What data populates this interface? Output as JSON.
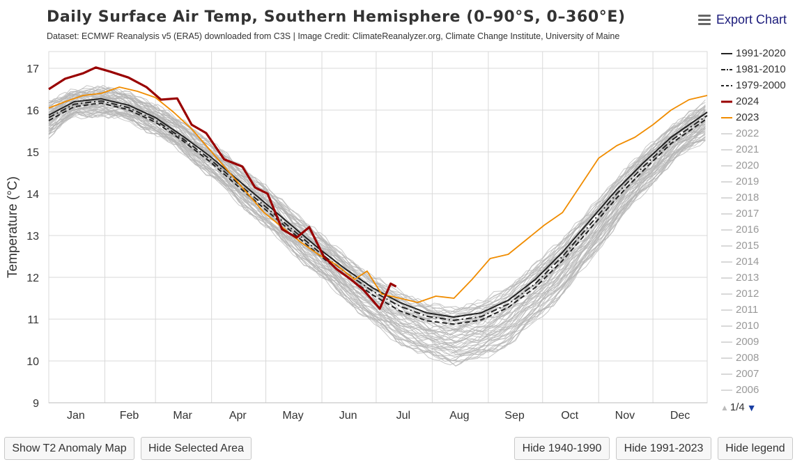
{
  "header": {
    "title": "Daily Surface Air Temp, Southern Hemisphere (0–90°S, 0–360°E)",
    "subtitle": "Dataset: ECMWF Reanalysis v5 (ERA5) downloaded from C3S | Image Credit: ClimateReanalyzer.org, Climate Change Institute, University of Maine",
    "export_label": "Export Chart"
  },
  "legend": {
    "items": [
      {
        "label": "1991-2020",
        "style": "solid-black"
      },
      {
        "label": "1981-2010",
        "style": "dashdot-black"
      },
      {
        "label": "1979-2000",
        "style": "dash-black"
      },
      {
        "label": "2024",
        "style": "thick-red"
      },
      {
        "label": "2023",
        "style": "orange"
      },
      {
        "label": "2022",
        "style": "gray"
      },
      {
        "label": "2021",
        "style": "gray"
      },
      {
        "label": "2020",
        "style": "gray"
      },
      {
        "label": "2019",
        "style": "gray"
      },
      {
        "label": "2018",
        "style": "gray"
      },
      {
        "label": "2017",
        "style": "gray"
      },
      {
        "label": "2016",
        "style": "gray"
      },
      {
        "label": "2015",
        "style": "gray"
      },
      {
        "label": "2014",
        "style": "gray"
      },
      {
        "label": "2013",
        "style": "gray"
      },
      {
        "label": "2012",
        "style": "gray"
      },
      {
        "label": "2011",
        "style": "gray"
      },
      {
        "label": "2010",
        "style": "gray"
      },
      {
        "label": "2009",
        "style": "gray"
      },
      {
        "label": "2008",
        "style": "gray"
      },
      {
        "label": "2007",
        "style": "gray"
      },
      {
        "label": "2006",
        "style": "gray"
      }
    ],
    "page_label": "1/4"
  },
  "buttons": {
    "show_anomaly": "Show T2 Anomaly Map",
    "hide_selected": "Hide Selected Area",
    "hide_1940": "Hide 1940-1990",
    "hide_1991": "Hide 1991-2023",
    "hide_legend": "Hide legend"
  },
  "colors": {
    "y2024": "#990000",
    "y2023": "#f08c00",
    "historical": "#b4b4b4",
    "mean": "#222222",
    "grid": "#d9d9d9"
  },
  "chart_data": {
    "type": "line",
    "ylabel": "Temperature (°C)",
    "ylim": [
      9,
      17.4
    ],
    "yticks": [
      9,
      10,
      11,
      12,
      13,
      14,
      15,
      16,
      17
    ],
    "xlim": [
      1,
      365
    ],
    "months": [
      {
        "label": "Jan",
        "center": 16
      },
      {
        "label": "Feb",
        "center": 45.5
      },
      {
        "label": "Mar",
        "center": 75
      },
      {
        "label": "Apr",
        "center": 105.5
      },
      {
        "label": "May",
        "center": 136
      },
      {
        "label": "Jun",
        "center": 166.5
      },
      {
        "label": "Jul",
        "center": 197
      },
      {
        "label": "Aug",
        "center": 228
      },
      {
        "label": "Sep",
        "center": 258.5
      },
      {
        "label": "Oct",
        "center": 289
      },
      {
        "label": "Nov",
        "center": 319.5
      },
      {
        "label": "Dec",
        "center": 350
      }
    ],
    "month_boundaries": [
      32,
      60,
      91,
      121,
      152,
      182,
      213,
      244,
      274,
      305,
      335
    ],
    "series": [
      {
        "name": "1991-2020",
        "days": [
          1,
          15,
          30,
          45,
          60,
          75,
          90,
          105,
          120,
          135,
          150,
          165,
          180,
          195,
          210,
          225,
          240,
          255,
          270,
          285,
          300,
          315,
          330,
          345,
          365
        ],
        "values": [
          15.88,
          16.2,
          16.27,
          16.12,
          15.82,
          15.38,
          14.9,
          14.35,
          13.8,
          13.25,
          12.7,
          12.2,
          11.75,
          11.4,
          11.15,
          11.05,
          11.15,
          11.45,
          11.95,
          12.6,
          13.35,
          14.1,
          14.75,
          15.35,
          15.95
        ]
      },
      {
        "name": "1981-2010",
        "days": [
          1,
          15,
          30,
          45,
          60,
          75,
          90,
          105,
          120,
          135,
          150,
          165,
          180,
          195,
          210,
          225,
          240,
          255,
          270,
          285,
          300,
          315,
          330,
          345,
          365
        ],
        "values": [
          15.82,
          16.14,
          16.22,
          16.06,
          15.76,
          15.32,
          14.83,
          14.27,
          13.72,
          13.17,
          12.62,
          12.12,
          11.67,
          11.31,
          11.07,
          10.97,
          11.06,
          11.36,
          11.85,
          12.5,
          13.25,
          14.0,
          14.66,
          15.27,
          15.87
        ]
      },
      {
        "name": "1979-2000",
        "days": [
          1,
          15,
          30,
          45,
          60,
          75,
          90,
          105,
          120,
          135,
          150,
          165,
          180,
          195,
          210,
          225,
          240,
          255,
          270,
          285,
          300,
          315,
          330,
          345,
          365
        ],
        "values": [
          15.75,
          16.08,
          16.17,
          16.01,
          15.71,
          15.27,
          14.77,
          14.2,
          13.65,
          13.1,
          12.55,
          12.04,
          11.58,
          11.2,
          10.96,
          10.88,
          10.98,
          11.28,
          11.76,
          12.4,
          13.15,
          13.9,
          14.57,
          15.2,
          15.8
        ]
      },
      {
        "name": "2024",
        "days": [
          1,
          10,
          20,
          27,
          35,
          45,
          55,
          63,
          72,
          80,
          88,
          98,
          108,
          115,
          122,
          130,
          138,
          145,
          153,
          160,
          168,
          175,
          180,
          184,
          187,
          190,
          193
        ],
        "values": [
          16.5,
          16.75,
          16.88,
          17.02,
          16.92,
          16.78,
          16.55,
          16.25,
          16.28,
          15.65,
          15.45,
          14.82,
          14.65,
          14.15,
          14.0,
          13.15,
          12.95,
          13.2,
          12.5,
          12.2,
          11.95,
          11.7,
          11.45,
          11.25,
          11.55,
          11.85,
          11.78
        ]
      },
      {
        "name": "2023",
        "days": [
          1,
          10,
          20,
          30,
          40,
          50,
          60,
          70,
          80,
          90,
          100,
          110,
          120,
          130,
          140,
          150,
          160,
          170,
          177,
          185,
          195,
          205,
          215,
          225,
          235,
          245,
          255,
          265,
          275,
          285,
          295,
          305,
          315,
          325,
          335,
          345,
          355,
          365
        ],
        "values": [
          16.05,
          16.2,
          16.35,
          16.4,
          16.55,
          16.45,
          16.3,
          15.95,
          15.55,
          15.05,
          14.55,
          14.05,
          13.55,
          13.2,
          12.85,
          12.55,
          12.3,
          11.95,
          12.15,
          11.6,
          11.5,
          11.4,
          11.55,
          11.5,
          11.95,
          12.45,
          12.55,
          12.9,
          13.25,
          13.55,
          14.2,
          14.85,
          15.15,
          15.35,
          15.65,
          16.0,
          16.25,
          16.35
        ]
      }
    ],
    "historical_band": {
      "years": "1940-2022",
      "days": [
        1,
        15,
        30,
        45,
        60,
        75,
        90,
        105,
        120,
        135,
        150,
        165,
        180,
        195,
        210,
        225,
        240,
        255,
        270,
        285,
        300,
        315,
        330,
        345,
        365
      ],
      "low": [
        15.4,
        15.85,
        15.9,
        15.75,
        15.45,
        15.0,
        14.45,
        13.85,
        13.25,
        12.65,
        12.05,
        11.5,
        10.9,
        10.45,
        10.1,
        9.95,
        10.05,
        10.4,
        10.95,
        11.6,
        12.4,
        13.3,
        14.05,
        14.75,
        15.35
      ],
      "high": [
        16.2,
        16.45,
        16.55,
        16.4,
        16.1,
        15.7,
        15.25,
        14.7,
        14.2,
        13.6,
        13.05,
        12.5,
        12.0,
        11.65,
        11.35,
        11.25,
        11.4,
        11.75,
        12.3,
        12.9,
        13.6,
        14.35,
        15.0,
        15.6,
        16.2
      ]
    }
  }
}
